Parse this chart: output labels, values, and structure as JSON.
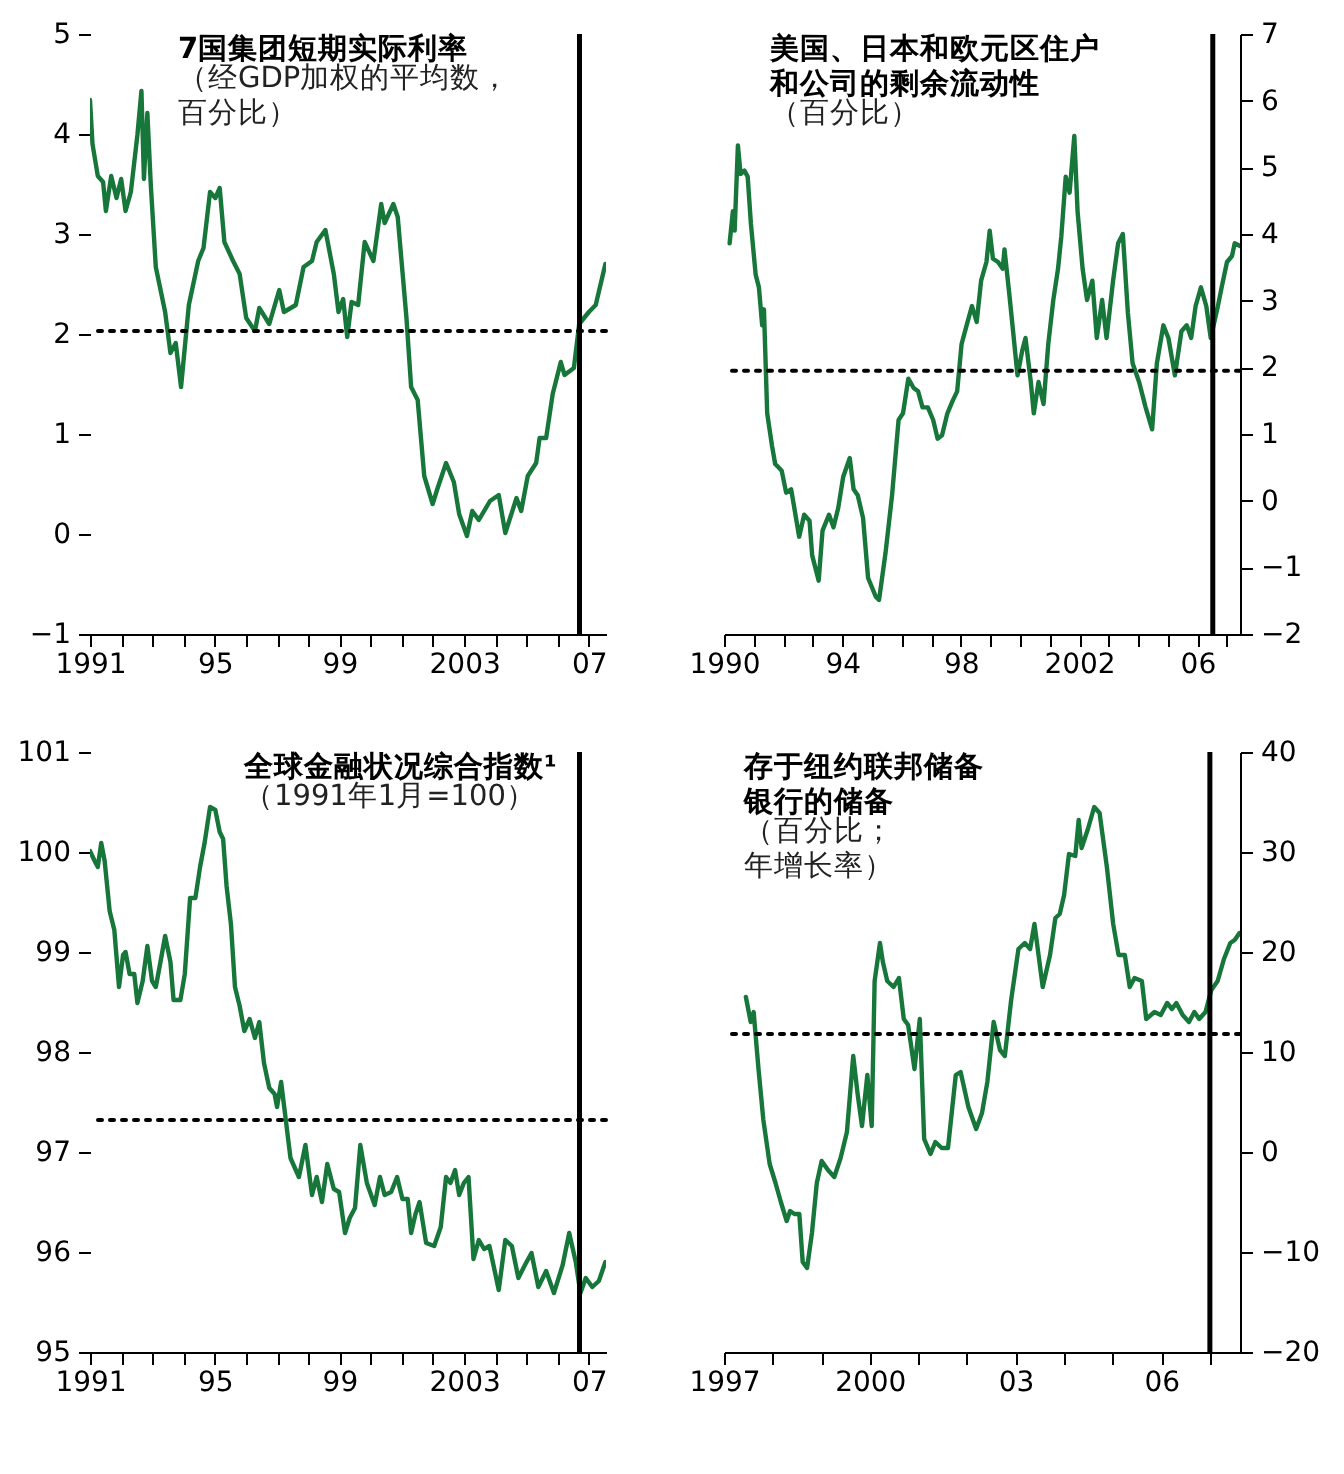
{
  "chart_data": [
    {
      "type": "line",
      "title": "7国集团短期实际利率",
      "subtitle": "（经GDP加权的平均数，百分比）",
      "xlim": [
        1991,
        2007.55
      ],
      "ylim": [
        -1,
        5
      ],
      "yticks": [
        -1,
        0,
        1,
        2,
        3,
        4,
        5
      ],
      "xticks": [
        {
          "value": 1991,
          "label": "1991"
        },
        {
          "value": 1992,
          "label": null
        },
        {
          "value": 1993,
          "label": null
        },
        {
          "value": 1994,
          "label": null
        },
        {
          "value": 1995,
          "label": "95"
        },
        {
          "value": 1996,
          "label": null
        },
        {
          "value": 1997,
          "label": null
        },
        {
          "value": 1998,
          "label": null
        },
        {
          "value": 1999,
          "label": "99"
        },
        {
          "value": 2000,
          "label": null
        },
        {
          "value": 2001,
          "label": null
        },
        {
          "value": 2002,
          "label": null
        },
        {
          "value": 2003,
          "label": "2003"
        },
        {
          "value": 2004,
          "label": null
        },
        {
          "value": 2005,
          "label": null
        },
        {
          "value": 2006,
          "label": null
        },
        {
          "value": 2007,
          "label": "07"
        }
      ],
      "x": [
        1991.0,
        1991.08,
        1991.25,
        1991.42,
        1991.51,
        1991.68,
        1991.85,
        1992.0,
        1992.14,
        1992.31,
        1992.52,
        1992.65,
        1992.73,
        1992.84,
        1992.95,
        1993.11,
        1993.41,
        1993.58,
        1993.75,
        1993.92,
        1994.17,
        1994.47,
        1994.64,
        1994.85,
        1995.02,
        1995.16,
        1995.31,
        1995.59,
        1995.8,
        1996.01,
        1996.29,
        1996.43,
        1996.75,
        1997.07,
        1997.22,
        1997.6,
        1997.85,
        1998.12,
        1998.27,
        1998.55,
        1998.82,
        1998.97,
        1999.12,
        1999.25,
        1999.39,
        1999.6,
        1999.81,
        2000.09,
        2000.34,
        2000.45,
        2000.73,
        2000.87,
        2001.15,
        2001.3,
        2001.51,
        2001.72,
        2001.99,
        2002.14,
        2002.42,
        2002.67,
        2002.84,
        2003.09,
        2003.26,
        2003.47,
        2003.83,
        2004.11,
        2004.32,
        2004.68,
        2004.83,
        2005.04,
        2005.31,
        2005.42,
        2005.63,
        2005.84,
        2006.1,
        2006.22,
        2006.52,
        2006.69,
        2007.0,
        2007.22,
        2007.53
      ],
      "series": [
        {
          "color": "#17763a",
          "values": [
            4.34,
            3.9,
            3.58,
            3.52,
            3.23,
            3.58,
            3.36,
            3.55,
            3.23,
            3.42,
            3.99,
            4.43,
            3.55,
            4.21,
            3.49,
            2.67,
            2.22,
            1.81,
            1.91,
            1.47,
            2.29,
            2.73,
            2.86,
            3.42,
            3.36,
            3.46,
            2.92,
            2.73,
            2.6,
            2.16,
            2.03,
            2.26,
            2.1,
            2.44,
            2.22,
            2.29,
            2.67,
            2.73,
            2.92,
            3.04,
            2.6,
            2.22,
            2.35,
            1.97,
            2.32,
            2.29,
            2.92,
            2.73,
            3.3,
            3.11,
            3.3,
            3.17,
            2.16,
            1.47,
            1.34,
            0.58,
            0.3,
            0.45,
            0.71,
            0.52,
            0.2,
            -0.02,
            0.23,
            0.14,
            0.33,
            0.39,
            0.01,
            0.36,
            0.23,
            0.58,
            0.71,
            0.96,
            0.96,
            1.4,
            1.72,
            1.59,
            1.66,
            2.1,
            2.22,
            2.29,
            2.7
          ]
        }
      ],
      "ref_lines": [
        {
          "axis": "y",
          "value": 2.03,
          "color": "#000000",
          "line_style": "dotted"
        },
        {
          "axis": "x",
          "value": 2006.7,
          "color": "#000000",
          "line_style": "solid"
        }
      ],
      "grid": false,
      "marker": "none",
      "line_style": "solid"
    },
    {
      "type": "line",
      "title": "美国、日本和欧元区住户和公司的剩余流动性",
      "subtitle": "（百分比）",
      "xlim": [
        1990,
        2007.44
      ],
      "ylim": [
        -2,
        7
      ],
      "yticks": [
        -2,
        -1,
        0,
        1,
        2,
        3,
        4,
        5,
        6,
        7
      ],
      "xticks": [
        {
          "value": 1990,
          "label": "1990"
        },
        {
          "value": 1991,
          "label": null
        },
        {
          "value": 1992,
          "label": null
        },
        {
          "value": 1993,
          "label": null
        },
        {
          "value": 1994,
          "label": "94"
        },
        {
          "value": 1995,
          "label": null
        },
        {
          "value": 1996,
          "label": null
        },
        {
          "value": 1997,
          "label": null
        },
        {
          "value": 1998,
          "label": "98"
        },
        {
          "value": 1999,
          "label": null
        },
        {
          "value": 2000,
          "label": null
        },
        {
          "value": 2001,
          "label": null
        },
        {
          "value": 2002,
          "label": "2002"
        },
        {
          "value": 2003,
          "label": null
        },
        {
          "value": 2004,
          "label": null
        },
        {
          "value": 2005,
          "label": null
        },
        {
          "value": 2006,
          "label": "06"
        },
        {
          "value": 2007,
          "label": null
        }
      ],
      "x": [
        1990.19,
        1990.3,
        1990.36,
        1990.47,
        1990.56,
        1990.69,
        1990.8,
        1990.91,
        1991.07,
        1991.18,
        1991.29,
        1991.35,
        1991.46,
        1991.62,
        1991.73,
        1991.84,
        1991.95,
        1992.1,
        1992.27,
        1992.54,
        1992.71,
        1992.89,
        1992.98,
        1993.2,
        1993.33,
        1993.55,
        1993.7,
        1993.86,
        1994.03,
        1994.25,
        1994.38,
        1994.52,
        1994.7,
        1994.87,
        1995.13,
        1995.24,
        1995.46,
        1995.68,
        1995.9,
        1996.05,
        1996.23,
        1996.41,
        1996.56,
        1996.71,
        1996.89,
        1997.07,
        1997.22,
        1997.37,
        1997.55,
        1997.73,
        1997.88,
        1998.03,
        1998.2,
        1998.38,
        1998.54,
        1998.69,
        1998.87,
        1998.98,
        1999.09,
        1999.26,
        1999.42,
        1999.48,
        1999.64,
        1999.75,
        1999.92,
        2000.08,
        2000.19,
        2000.37,
        2000.47,
        2000.63,
        2000.8,
        2000.96,
        2001.13,
        2001.29,
        2001.4,
        2001.55,
        2001.68,
        2001.84,
        2001.95,
        2002.12,
        2002.27,
        2002.45,
        2002.6,
        2002.78,
        2002.93,
        2003.15,
        2003.32,
        2003.48,
        2003.65,
        2003.81,
        2004.03,
        2004.25,
        2004.47,
        2004.63,
        2004.85,
        2005.02,
        2005.24,
        2005.46,
        2005.64,
        2005.79,
        2005.94,
        2006.12,
        2006.3,
        2006.45,
        2006.67,
        2006.82,
        2007.0,
        2007.17,
        2007.26,
        2007.44
      ],
      "series": [
        {
          "color": "#17763a",
          "values": [
            3.86,
            4.34,
            4.05,
            5.33,
            4.9,
            4.95,
            4.86,
            4.15,
            3.39,
            3.2,
            2.63,
            2.87,
            1.31,
            0.83,
            0.55,
            0.5,
            0.45,
            0.12,
            0.17,
            -0.54,
            -0.21,
            -0.3,
            -0.82,
            -1.2,
            -0.45,
            -0.21,
            -0.4,
            -0.11,
            0.36,
            0.64,
            0.17,
            0.08,
            -0.26,
            -1.16,
            -1.44,
            -1.49,
            -0.78,
            0.08,
            1.21,
            1.31,
            1.83,
            1.69,
            1.64,
            1.4,
            1.4,
            1.21,
            0.93,
            0.98,
            1.31,
            1.5,
            1.64,
            2.35,
            2.63,
            2.92,
            2.68,
            3.3,
            3.58,
            4.05,
            3.63,
            3.58,
            3.48,
            3.77,
            3.11,
            2.63,
            1.88,
            2.25,
            2.44,
            1.78,
            1.31,
            1.78,
            1.45,
            2.35,
            3.01,
            3.48,
            3.96,
            4.86,
            4.62,
            5.47,
            4.34,
            3.48,
            3.01,
            3.3,
            2.44,
            3.01,
            2.44,
            3.3,
            3.86,
            4.0,
            2.82,
            2.06,
            1.78,
            1.4,
            1.07,
            2.06,
            2.63,
            2.44,
            1.88,
            2.54,
            2.63,
            2.44,
            2.92,
            3.2,
            2.92,
            2.44,
            2.87,
            3.2,
            3.58,
            3.67,
            3.86,
            3.82
          ]
        }
      ],
      "ref_lines": [
        {
          "axis": "y",
          "value": 1.95,
          "color": "#000000",
          "line_style": "dotted"
        },
        {
          "axis": "x",
          "value": 2006.52,
          "color": "#000000",
          "line_style": "solid"
        }
      ],
      "grid": false,
      "marker": "none",
      "line_style": "solid"
    },
    {
      "type": "line",
      "title": "全球金融状况综合指数¹",
      "subtitle": "（1991年1月=100）",
      "xlim": [
        1991,
        2007.55
      ],
      "ylim": [
        95,
        101
      ],
      "yticks": [
        95,
        96,
        97,
        98,
        99,
        100,
        101
      ],
      "xticks": [
        {
          "value": 1991,
          "label": "1991"
        },
        {
          "value": 1992,
          "label": null
        },
        {
          "value": 1993,
          "label": null
        },
        {
          "value": 1994,
          "label": null
        },
        {
          "value": 1995,
          "label": "95"
        },
        {
          "value": 1996,
          "label": null
        },
        {
          "value": 1997,
          "label": null
        },
        {
          "value": 1998,
          "label": null
        },
        {
          "value": 1999,
          "label": "99"
        },
        {
          "value": 2000,
          "label": null
        },
        {
          "value": 2001,
          "label": null
        },
        {
          "value": 2002,
          "label": null
        },
        {
          "value": 2003,
          "label": "2003"
        },
        {
          "value": 2004,
          "label": null
        },
        {
          "value": 2005,
          "label": null
        },
        {
          "value": 2006,
          "label": null
        },
        {
          "value": 2007,
          "label": "07"
        }
      ],
      "x": [
        1991.0,
        1991.15,
        1991.25,
        1991.36,
        1991.47,
        1991.63,
        1991.78,
        1991.93,
        1992.06,
        1992.14,
        1992.27,
        1992.42,
        1992.52,
        1992.69,
        1992.84,
        1992.99,
        1993.11,
        1993.26,
        1993.41,
        1993.58,
        1993.68,
        1993.9,
        1994.04,
        1994.21,
        1994.38,
        1994.53,
        1994.68,
        1994.85,
        1995.02,
        1995.16,
        1995.27,
        1995.38,
        1995.52,
        1995.65,
        1995.8,
        1995.95,
        1996.12,
        1996.29,
        1996.43,
        1996.58,
        1996.75,
        1996.92,
        1997.0,
        1997.13,
        1997.28,
        1997.43,
        1997.7,
        1997.91,
        1998.12,
        1998.27,
        1998.44,
        1998.61,
        1998.82,
        1998.99,
        1999.18,
        1999.33,
        1999.5,
        1999.67,
        1999.88,
        2000.13,
        2000.3,
        2000.45,
        2000.66,
        2000.85,
        2001.02,
        2001.19,
        2001.3,
        2001.44,
        2001.57,
        2001.78,
        2002.04,
        2002.25,
        2002.42,
        2002.56,
        2002.71,
        2002.84,
        2002.99,
        2003.14,
        2003.3,
        2003.47,
        2003.64,
        2003.81,
        2004.11,
        2004.32,
        2004.53,
        2004.74,
        2004.95,
        2005.16,
        2005.38,
        2005.63,
        2005.88,
        2006.16,
        2006.37,
        2006.58,
        2006.73,
        2006.9,
        2007.11,
        2007.32,
        2007.53
      ],
      "series": [
        {
          "color": "#17763a",
          "values": [
            100.01,
            99.91,
            99.85,
            100.09,
            99.91,
            99.41,
            99.22,
            98.65,
            98.97,
            99.0,
            98.78,
            98.78,
            98.49,
            98.71,
            99.06,
            98.71,
            98.65,
            98.9,
            99.16,
            98.9,
            98.52,
            98.52,
            98.78,
            99.54,
            99.54,
            99.85,
            100.1,
            100.45,
            100.42,
            100.2,
            100.13,
            99.66,
            99.28,
            98.65,
            98.46,
            98.21,
            98.33,
            98.14,
            98.3,
            97.89,
            97.64,
            97.58,
            97.45,
            97.7,
            97.32,
            96.94,
            96.75,
            97.07,
            96.57,
            96.75,
            96.5,
            96.88,
            96.63,
            96.6,
            96.19,
            96.34,
            96.44,
            97.07,
            96.69,
            96.47,
            96.75,
            96.57,
            96.6,
            96.75,
            96.53,
            96.53,
            96.19,
            96.38,
            96.5,
            96.09,
            96.06,
            96.25,
            96.75,
            96.69,
            96.82,
            96.57,
            96.69,
            96.75,
            95.93,
            96.12,
            96.03,
            96.06,
            95.62,
            96.12,
            96.06,
            95.74,
            95.87,
            95.99,
            95.65,
            95.81,
            95.59,
            95.87,
            96.19,
            95.9,
            95.59,
            95.74,
            95.65,
            95.71,
            95.9
          ]
        }
      ],
      "ref_lines": [
        {
          "axis": "y",
          "value": 97.32,
          "color": "#000000",
          "line_style": "dotted"
        },
        {
          "axis": "x",
          "value": 2006.7,
          "color": "#000000",
          "line_style": "solid"
        }
      ],
      "grid": false,
      "marker": "none",
      "line_style": "solid"
    },
    {
      "type": "line",
      "title": "存于纽约联邦储备银行的储备",
      "subtitle": "（百分比；年增长率）",
      "xlim": [
        1997,
        2007.62
      ],
      "ylim": [
        -20,
        40
      ],
      "yticks": [
        -20,
        -10,
        0,
        10,
        20,
        30,
        40
      ],
      "xticks": [
        {
          "value": 1997,
          "label": "1997"
        },
        {
          "value": 1998,
          "label": null
        },
        {
          "value": 1999,
          "label": null
        },
        {
          "value": 2000,
          "label": "2000"
        },
        {
          "value": 2001,
          "label": null
        },
        {
          "value": 2002,
          "label": null
        },
        {
          "value": 2003,
          "label": "03"
        },
        {
          "value": 2004,
          "label": null
        },
        {
          "value": 2005,
          "label": null
        },
        {
          "value": 2006,
          "label": "06"
        },
        {
          "value": 2007,
          "label": null
        }
      ],
      "x": [
        1997.45,
        1997.55,
        1997.61,
        1997.71,
        1997.81,
        1997.94,
        1998.06,
        1998.17,
        1998.29,
        1998.36,
        1998.45,
        1998.55,
        1998.62,
        1998.71,
        1998.81,
        1998.91,
        1999.01,
        1999.14,
        1999.27,
        1999.4,
        1999.53,
        1999.66,
        1999.75,
        1999.84,
        1999.95,
        2000.04,
        2000.1,
        2000.21,
        2000.27,
        2000.36,
        2000.49,
        2000.6,
        2000.7,
        2000.79,
        2000.92,
        2001.03,
        2001.12,
        2001.25,
        2001.35,
        2001.48,
        2001.61,
        2001.77,
        2001.87,
        2002.03,
        2002.19,
        2002.31,
        2002.42,
        2002.55,
        2002.68,
        2002.78,
        2002.91,
        2003.06,
        2003.19,
        2003.3,
        2003.39,
        2003.56,
        2003.71,
        2003.82,
        2003.91,
        2004.0,
        2004.1,
        2004.23,
        2004.3,
        2004.36,
        2004.49,
        2004.62,
        2004.73,
        2004.88,
        2005.01,
        2005.12,
        2005.25,
        2005.35,
        2005.45,
        2005.6,
        2005.69,
        2005.86,
        2005.99,
        2006.12,
        2006.22,
        2006.31,
        2006.44,
        2006.57,
        2006.68,
        2006.78,
        2006.91,
        2007.03,
        2007.16,
        2007.29,
        2007.42,
        2007.51,
        2007.61
      ],
      "series": [
        {
          "color": "#17763a",
          "values": [
            15.5,
            13.0,
            14.0,
            8.3,
            3.2,
            -1.2,
            -3.1,
            -5.0,
            -6.9,
            -5.9,
            -6.2,
            -6.2,
            -11.0,
            -11.6,
            -8.1,
            -3.1,
            -0.9,
            -1.8,
            -2.5,
            -0.6,
            2.0,
            9.6,
            5.8,
            2.6,
            7.7,
            2.6,
            17.1,
            20.9,
            19.0,
            17.1,
            16.5,
            17.4,
            13.3,
            12.7,
            8.3,
            13.3,
            1.3,
            -0.2,
            1.0,
            0.4,
            0.4,
            7.7,
            8.0,
            4.5,
            2.3,
            3.9,
            7.0,
            13.0,
            10.2,
            9.6,
            15.2,
            20.3,
            20.9,
            20.3,
            22.8,
            16.5,
            19.7,
            23.4,
            23.8,
            25.7,
            29.8,
            29.6,
            33.2,
            30.4,
            32.3,
            34.5,
            33.9,
            28.5,
            22.8,
            19.7,
            19.7,
            16.5,
            17.4,
            17.1,
            13.3,
            14.0,
            13.7,
            14.9,
            14.3,
            14.9,
            13.7,
            13.0,
            14.0,
            13.3,
            14.0,
            16.2,
            17.1,
            19.3,
            20.9,
            21.2,
            21.9
          ]
        }
      ],
      "ref_lines": [
        {
          "axis": "y",
          "value": 11.8,
          "color": "#000000",
          "line_style": "dotted"
        },
        {
          "axis": "x",
          "value": 2007.0,
          "color": "#000000",
          "line_style": "solid"
        }
      ],
      "grid": false,
      "marker": "none",
      "line_style": "solid"
    }
  ]
}
